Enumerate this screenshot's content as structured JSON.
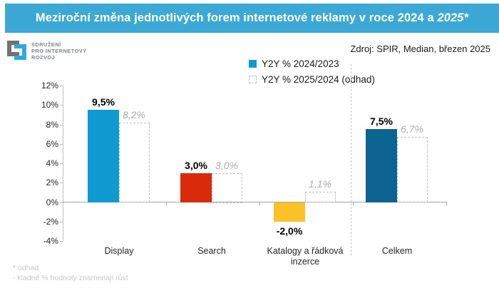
{
  "header": {
    "title_main": "Meziroční změna jednotlivých forem internetové reklamy v roce 2024 a ",
    "title_italic": "2025*",
    "source": "Zdroj: SPIR, Median, březen 2025"
  },
  "logo": {
    "line1": "SDRUŽENÍ",
    "line2": "PRO INTERNETOVÝ",
    "line3": "ROZVOJ"
  },
  "footer": {
    "note1": "* odhad",
    "note2": "- kladné % hodnoty znamenají růst"
  },
  "colors": {
    "banner": "#3CA8D5",
    "axis": "#bfbfbf",
    "zero_line": "#a6a6a6",
    "separator": "#c4c4c4",
    "dashed_border": "#c0c0c0",
    "muted_label": "#ababab"
  },
  "chart_data": {
    "type": "bar",
    "title": "Meziroční změna jednotlivých forem internetové reklamy v roce 2024 a 2025*",
    "categories": [
      "Display",
      "Search",
      "Katalogy a řádková inzerce",
      "Celkem"
    ],
    "series": [
      {
        "name": "Y2Y % 2024/2023",
        "style": "solid",
        "values": [
          9.5,
          3.0,
          -2.0,
          7.5
        ],
        "labels": [
          "9,5%",
          "3,0%",
          "-2,0%",
          "7,5%"
        ],
        "colors": [
          "#0f9bd1",
          "#d92b0b",
          "#fcc127",
          "#0d6490"
        ]
      },
      {
        "name": "Y2Y % 2025/2024 (odhad)",
        "style": "dashed",
        "values": [
          8.2,
          3.0,
          1.1,
          6.7
        ],
        "labels": [
          "8,2%",
          "3,0%",
          "1,1%",
          "6,7%"
        ]
      }
    ],
    "y_axis": {
      "min": -4,
      "max": 12,
      "step": 2,
      "tick_labels": [
        "12%",
        "10%",
        "8%",
        "6%",
        "4%",
        "2%",
        "0%",
        "-2%",
        "-4%"
      ]
    },
    "xlabel": "",
    "ylabel": "",
    "grid": false,
    "legend_position": "top-center",
    "separator_before_category": "Celkem"
  }
}
